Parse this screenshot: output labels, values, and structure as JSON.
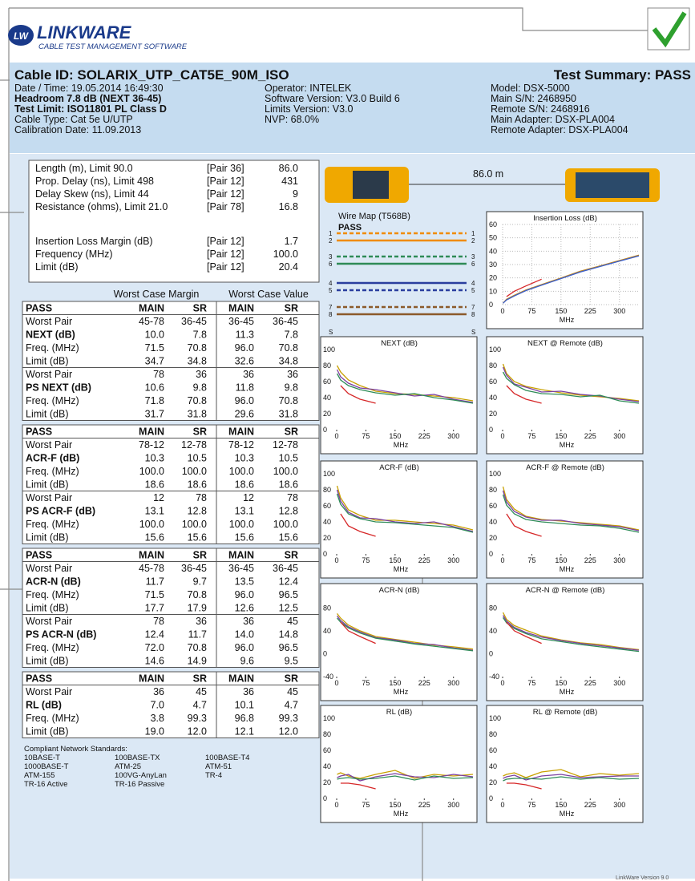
{
  "logo": {
    "mark": "LW",
    "name": "LINKWARE",
    "tagline": "CABLE TEST MANAGEMENT SOFTWARE"
  },
  "header": {
    "cable_id": "Cable ID: SOLARIX_UTP_CAT5E_90M_ISO",
    "summary": "Test Summary: PASS",
    "col1": [
      "Date / Time: 19.05.2014  16:49:30",
      "Headroom 7.8 dB (NEXT 36-45)",
      "Test Limit: ISO11801 PL Class D",
      "Cable Type: Cat 5e U/UTP",
      "Calibration Date: 11.09.2013"
    ],
    "col2": [
      "Operator: INTELEK",
      "Software Version: V3.0 Build 6",
      "Limits Version: V3.0",
      "NVP: 68.0%"
    ],
    "col3": [
      "Model: DSX-5000",
      "Main S/N: 2468950",
      "Remote S/N: 2468916",
      "Main Adapter: DSX-PLA004",
      "Remote Adapter: DSX-PLA004"
    ]
  },
  "results": {
    "rows": [
      [
        "Length (m), Limit 90.0",
        "[Pair 36]",
        "86.0"
      ],
      [
        "Prop. Delay (ns), Limit 498",
        "[Pair 12]",
        "431"
      ],
      [
        "Delay Skew (ns), Limit 44",
        "[Pair 12]",
        "9"
      ],
      [
        "Resistance (ohms), Limit 21.0",
        "[Pair 78]",
        "16.8"
      ],
      [
        "Insertion Loss Margin (dB)",
        "[Pair 12]",
        "1.7"
      ],
      [
        "Frequency (MHz)",
        "[Pair 12]",
        "100.0"
      ],
      [
        "Limit (dB)",
        "[Pair 12]",
        "20.4"
      ]
    ]
  },
  "worst_case": {
    "margin_label": "Worst Case Margin",
    "value_label": "Worst Case Value",
    "blocks": [
      [
        [
          "PASS",
          "MAIN",
          "SR",
          "MAIN",
          "SR"
        ],
        [
          "Worst Pair",
          "45-78",
          "36-45",
          "36-45",
          "36-45"
        ],
        [
          "NEXT (dB)",
          "10.0",
          "7.8",
          "11.3",
          "7.8"
        ],
        [
          "Freq. (MHz)",
          "71.5",
          "70.8",
          "96.0",
          "70.8"
        ],
        [
          "Limit (dB)",
          "34.7",
          "34.8",
          "32.6",
          "34.8"
        ],
        [
          "Worst Pair",
          "78",
          "36",
          "36",
          "36"
        ],
        [
          "PS NEXT (dB)",
          "10.6",
          "9.8",
          "11.8",
          "9.8"
        ],
        [
          "Freq. (MHz)",
          "71.8",
          "70.8",
          "96.0",
          "70.8"
        ],
        [
          "Limit (dB)",
          "31.7",
          "31.8",
          "29.6",
          "31.8"
        ]
      ],
      [
        [
          "PASS",
          "MAIN",
          "SR",
          "MAIN",
          "SR"
        ],
        [
          "Worst Pair",
          "78-12",
          "12-78",
          "78-12",
          "12-78"
        ],
        [
          "ACR-F (dB)",
          "10.3",
          "10.5",
          "10.3",
          "10.5"
        ],
        [
          "Freq. (MHz)",
          "100.0",
          "100.0",
          "100.0",
          "100.0"
        ],
        [
          "Limit (dB)",
          "18.6",
          "18.6",
          "18.6",
          "18.6"
        ],
        [
          "Worst Pair",
          "12",
          "78",
          "12",
          "78"
        ],
        [
          "PS ACR-F (dB)",
          "13.1",
          "12.8",
          "13.1",
          "12.8"
        ],
        [
          "Freq. (MHz)",
          "100.0",
          "100.0",
          "100.0",
          "100.0"
        ],
        [
          "Limit (dB)",
          "15.6",
          "15.6",
          "15.6",
          "15.6"
        ]
      ],
      [
        [
          "PASS",
          "MAIN",
          "SR",
          "MAIN",
          "SR"
        ],
        [
          "Worst Pair",
          "45-78",
          "36-45",
          "36-45",
          "36-45"
        ],
        [
          "ACR-N (dB)",
          "11.7",
          "9.7",
          "13.5",
          "12.4"
        ],
        [
          "Freq. (MHz)",
          "71.5",
          "70.8",
          "96.0",
          "96.5"
        ],
        [
          "Limit (dB)",
          "17.7",
          "17.9",
          "12.6",
          "12.5"
        ],
        [
          "Worst Pair",
          "78",
          "36",
          "36",
          "45"
        ],
        [
          "PS ACR-N (dB)",
          "12.4",
          "11.7",
          "14.0",
          "14.8"
        ],
        [
          "Freq. (MHz)",
          "72.0",
          "70.8",
          "96.0",
          "96.5"
        ],
        [
          "Limit (dB)",
          "14.6",
          "14.9",
          "9.6",
          "9.5"
        ]
      ],
      [
        [
          "PASS",
          "MAIN",
          "SR",
          "MAIN",
          "SR"
        ],
        [
          "Worst Pair",
          "36",
          "45",
          "36",
          "45"
        ],
        [
          "RL (dB)",
          "7.0",
          "4.7",
          "10.1",
          "4.7"
        ],
        [
          "Freq. (MHz)",
          "3.8",
          "99.3",
          "96.8",
          "99.3"
        ],
        [
          "Limit (dB)",
          "19.0",
          "12.0",
          "12.1",
          "12.0"
        ]
      ]
    ]
  },
  "standards": {
    "title": "Compliant Network Standards:",
    "items": [
      "10BASE-T",
      "100BASE-TX",
      "100BASE-T4",
      "1000BASE-T",
      "ATM-25",
      "ATM-51",
      "ATM-155",
      "100VG-AnyLan",
      "TR-4",
      "TR-16 Active",
      "TR-16 Passive"
    ]
  },
  "length": "86.0 m",
  "wire_map": {
    "title": "Wire Map (T568B)",
    "status": "PASS",
    "pins": [
      "1",
      "2",
      "3",
      "6",
      "4",
      "5",
      "7",
      "8",
      "S"
    ]
  },
  "footer": "LinkWare Version 9.0",
  "chart_data": [
    {
      "type": "line",
      "title": "Insertion Loss (dB)",
      "xlabel": "MHz",
      "x": [
        1,
        10,
        30,
        60,
        100,
        150,
        200,
        250,
        300,
        350
      ],
      "xlim": [
        0,
        350
      ],
      "xticks": [
        0,
        75,
        150,
        225,
        300
      ],
      "ylim": [
        0,
        60
      ],
      "yticks": [
        0,
        10,
        20,
        30,
        40,
        50,
        60
      ],
      "grid": true,
      "series": [
        {
          "color": "#c0841a",
          "values": [
            1,
            4,
            7,
            11,
            15,
            20,
            25,
            29,
            33,
            37
          ]
        },
        {
          "color": "#3a5fcd",
          "values": [
            1,
            3.5,
            6.5,
            10.5,
            14.5,
            19.5,
            24.5,
            28.5,
            32.5,
            36.5
          ]
        },
        {
          "color": "#d62728",
          "values": [
            null,
            6,
            10,
            14,
            19,
            null,
            null,
            null,
            null,
            null
          ]
        }
      ]
    },
    {
      "type": "line",
      "title": "NEXT (dB)",
      "xlabel": "MHz",
      "x": [
        1,
        10,
        30,
        60,
        100,
        150,
        200,
        250,
        300,
        350
      ],
      "xlim": [
        0,
        350
      ],
      "xticks": [
        0,
        75,
        150,
        225,
        300
      ],
      "ylim": [
        0,
        100
      ],
      "yticks": [
        0,
        20,
        40,
        60,
        80,
        100
      ],
      "grid": false,
      "series": [
        {
          "color": "#c8a000",
          "values": [
            80,
            72,
            62,
            55,
            48,
            45,
            44,
            42,
            40,
            36
          ]
        },
        {
          "color": "#7b3fa0",
          "values": [
            75,
            66,
            58,
            52,
            50,
            46,
            42,
            44,
            38,
            34
          ]
        },
        {
          "color": "#2e8b57",
          "values": [
            70,
            62,
            55,
            50,
            46,
            43,
            45,
            40,
            37,
            33
          ]
        },
        {
          "color": "#d62728",
          "values": [
            null,
            55,
            45,
            38,
            33,
            null,
            null,
            null,
            null,
            null
          ]
        }
      ]
    },
    {
      "type": "line",
      "title": "NEXT @ Remote (dB)",
      "xlabel": "MHz",
      "x": [
        1,
        10,
        30,
        60,
        100,
        150,
        200,
        250,
        300,
        350
      ],
      "xlim": [
        0,
        350
      ],
      "xticks": [
        0,
        75,
        150,
        225,
        300
      ],
      "ylim": [
        0,
        100
      ],
      "yticks": [
        0,
        20,
        40,
        60,
        80,
        100
      ],
      "grid": false,
      "series": [
        {
          "color": "#c8a000",
          "values": [
            82,
            70,
            60,
            54,
            50,
            46,
            43,
            41,
            39,
            36
          ]
        },
        {
          "color": "#7b3fa0",
          "values": [
            78,
            68,
            57,
            53,
            47,
            48,
            44,
            42,
            38,
            35
          ]
        },
        {
          "color": "#2e8b57",
          "values": [
            72,
            64,
            56,
            49,
            45,
            44,
            41,
            43,
            36,
            33
          ]
        },
        {
          "color": "#d62728",
          "values": [
            null,
            55,
            45,
            38,
            33,
            null,
            null,
            null,
            null,
            null
          ]
        }
      ]
    },
    {
      "type": "line",
      "title": "ACR-F (dB)",
      "xlabel": "MHz",
      "x": [
        1,
        10,
        30,
        60,
        100,
        150,
        200,
        250,
        300,
        350
      ],
      "xlim": [
        0,
        350
      ],
      "xticks": [
        0,
        75,
        150,
        225,
        300
      ],
      "ylim": [
        0,
        100
      ],
      "yticks": [
        0,
        20,
        40,
        60,
        80,
        100
      ],
      "grid": false,
      "series": [
        {
          "color": "#c8a000",
          "values": [
            85,
            70,
            55,
            48,
            42,
            42,
            40,
            38,
            36,
            30
          ]
        },
        {
          "color": "#7b3fa0",
          "values": [
            80,
            66,
            52,
            45,
            44,
            40,
            38,
            40,
            34,
            28
          ]
        },
        {
          "color": "#2e8b57",
          "values": [
            75,
            62,
            50,
            44,
            40,
            39,
            37,
            35,
            33,
            27
          ]
        },
        {
          "color": "#d62728",
          "values": [
            null,
            50,
            35,
            28,
            22,
            null,
            null,
            null,
            null,
            null
          ]
        }
      ]
    },
    {
      "type": "line",
      "title": "ACR-F @ Remote (dB)",
      "xlabel": "MHz",
      "x": [
        1,
        10,
        30,
        60,
        100,
        150,
        200,
        250,
        300,
        350
      ],
      "xlim": [
        0,
        350
      ],
      "xticks": [
        0,
        75,
        150,
        225,
        300
      ],
      "ylim": [
        0,
        100
      ],
      "yticks": [
        0,
        20,
        40,
        60,
        80,
        100
      ],
      "grid": false,
      "series": [
        {
          "color": "#c8a000",
          "values": [
            84,
            68,
            56,
            47,
            43,
            41,
            39,
            37,
            35,
            30
          ]
        },
        {
          "color": "#7b3fa0",
          "values": [
            79,
            65,
            53,
            46,
            42,
            42,
            38,
            36,
            34,
            29
          ]
        },
        {
          "color": "#2e8b57",
          "values": [
            74,
            61,
            50,
            43,
            40,
            38,
            36,
            35,
            32,
            27
          ]
        },
        {
          "color": "#d62728",
          "values": [
            null,
            50,
            35,
            28,
            22,
            null,
            null,
            null,
            null,
            null
          ]
        }
      ]
    },
    {
      "type": "line",
      "title": "ACR-N (dB)",
      "xlabel": "MHz",
      "x": [
        1,
        10,
        30,
        60,
        100,
        150,
        200,
        250,
        300,
        350
      ],
      "xlim": [
        0,
        350
      ],
      "xticks": [
        0,
        75,
        150,
        225,
        300
      ],
      "ylim": [
        -40,
        100
      ],
      "yticks": [
        -40,
        0,
        40,
        80
      ],
      "grid": false,
      "series": [
        {
          "color": "#c8a000",
          "values": [
            70,
            62,
            50,
            40,
            30,
            25,
            20,
            15,
            12,
            8
          ]
        },
        {
          "color": "#7b3fa0",
          "values": [
            66,
            58,
            47,
            38,
            28,
            24,
            18,
            16,
            10,
            6
          ]
        },
        {
          "color": "#2e8b57",
          "values": [
            62,
            55,
            45,
            36,
            27,
            22,
            17,
            13,
            9,
            5
          ]
        },
        {
          "color": "#d62728",
          "values": [
            null,
            55,
            40,
            30,
            18,
            null,
            null,
            null,
            null,
            null
          ]
        }
      ]
    },
    {
      "type": "line",
      "title": "ACR-N @ Remote (dB)",
      "xlabel": "MHz",
      "x": [
        1,
        10,
        30,
        60,
        100,
        150,
        200,
        250,
        300,
        350
      ],
      "xlim": [
        0,
        350
      ],
      "xticks": [
        0,
        75,
        150,
        225,
        300
      ],
      "ylim": [
        -40,
        100
      ],
      "yticks": [
        -40,
        0,
        40,
        80
      ],
      "grid": false,
      "series": [
        {
          "color": "#c8a000",
          "values": [
            72,
            60,
            49,
            41,
            31,
            24,
            19,
            16,
            11,
            7
          ]
        },
        {
          "color": "#7b3fa0",
          "values": [
            67,
            57,
            46,
            37,
            29,
            23,
            18,
            14,
            10,
            6
          ]
        },
        {
          "color": "#2e8b57",
          "values": [
            63,
            54,
            44,
            35,
            26,
            21,
            16,
            12,
            8,
            4
          ]
        },
        {
          "color": "#d62728",
          "values": [
            null,
            55,
            40,
            30,
            18,
            null,
            null,
            null,
            null,
            null
          ]
        }
      ]
    },
    {
      "type": "line",
      "title": "RL (dB)",
      "xlabel": "MHz",
      "x": [
        1,
        10,
        30,
        60,
        100,
        150,
        200,
        250,
        300,
        350
      ],
      "xlim": [
        0,
        350
      ],
      "xticks": [
        0,
        75,
        150,
        225,
        300
      ],
      "ylim": [
        0,
        100
      ],
      "yticks": [
        0,
        20,
        40,
        60,
        80,
        100
      ],
      "grid": false,
      "series": [
        {
          "color": "#c8a000",
          "values": [
            30,
            32,
            28,
            25,
            30,
            35,
            25,
            30,
            28,
            30
          ]
        },
        {
          "color": "#7b3fa0",
          "values": [
            26,
            28,
            30,
            22,
            27,
            31,
            27,
            26,
            30,
            27
          ]
        },
        {
          "color": "#2e8b57",
          "values": [
            24,
            25,
            26,
            24,
            25,
            28,
            23,
            28,
            25,
            26
          ]
        },
        {
          "color": "#d62728",
          "values": [
            null,
            19,
            19,
            17,
            12,
            null,
            null,
            null,
            null,
            null
          ]
        }
      ]
    },
    {
      "type": "line",
      "title": "RL @ Remote (dB)",
      "xlabel": "MHz",
      "x": [
        1,
        10,
        30,
        60,
        100,
        150,
        200,
        250,
        300,
        350
      ],
      "xlim": [
        0,
        350
      ],
      "xticks": [
        0,
        75,
        150,
        225,
        300
      ],
      "ylim": [
        0,
        100
      ],
      "yticks": [
        0,
        20,
        40,
        60,
        80,
        100
      ],
      "grid": false,
      "series": [
        {
          "color": "#c8a000",
          "values": [
            28,
            30,
            32,
            26,
            33,
            36,
            27,
            31,
            29,
            31
          ]
        },
        {
          "color": "#7b3fa0",
          "values": [
            25,
            27,
            29,
            23,
            28,
            30,
            26,
            27,
            28,
            28
          ]
        },
        {
          "color": "#2e8b57",
          "values": [
            22,
            24,
            25,
            25,
            24,
            27,
            24,
            26,
            24,
            25
          ]
        },
        {
          "color": "#d62728",
          "values": [
            null,
            19,
            19,
            17,
            12,
            null,
            null,
            null,
            null,
            null
          ]
        }
      ]
    }
  ]
}
